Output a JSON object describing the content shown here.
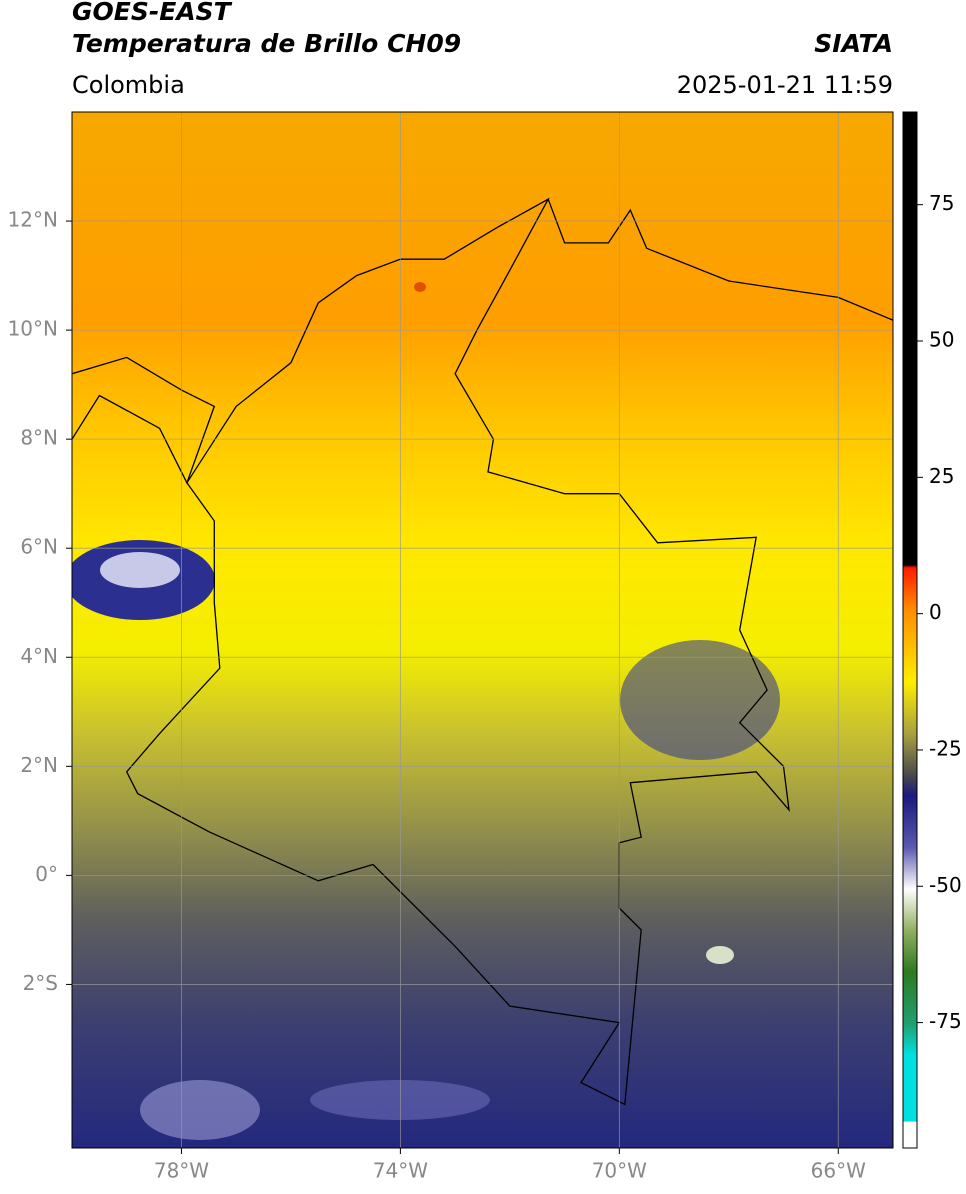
{
  "header": {
    "title": "GOES-EAST",
    "subtitle": "Temperatura de Brillo CH09",
    "region": "Colombia",
    "source": "SIATA",
    "datetime": "2025-01-21 11:59"
  },
  "map": {
    "xlim": [
      -80,
      -65
    ],
    "ylim": [
      -5,
      14
    ],
    "xticks": [
      {
        "value": -78,
        "label": "78°W"
      },
      {
        "value": -74,
        "label": "74°W"
      },
      {
        "value": -70,
        "label": "70°W"
      },
      {
        "value": -66,
        "label": "66°W"
      }
    ],
    "yticks": [
      {
        "value": 12,
        "label": "12°N"
      },
      {
        "value": 10,
        "label": "10°N"
      },
      {
        "value": 8,
        "label": "8°N"
      },
      {
        "value": 6,
        "label": "6°N"
      },
      {
        "value": 4,
        "label": "4°N"
      },
      {
        "value": 2,
        "label": "2°N"
      },
      {
        "value": 0,
        "label": "0°"
      },
      {
        "value": -2,
        "label": "2°S"
      }
    ],
    "grid": true
  },
  "colorbar": {
    "lim": [
      -98,
      92
    ],
    "ticks": [
      75,
      50,
      25,
      0,
      -25,
      -50,
      -75
    ]
  }
}
